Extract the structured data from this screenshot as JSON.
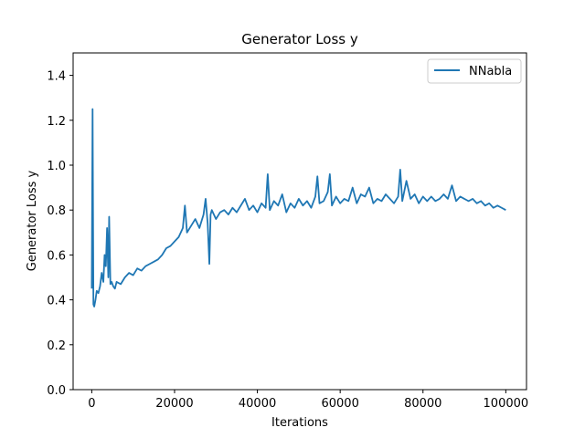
{
  "chart_data": {
    "type": "line",
    "title": "Generator Loss y",
    "xlabel": "Iterations",
    "ylabel": "Generator Loss y",
    "xlim": [
      -4500,
      105000
    ],
    "ylim": [
      0.0,
      1.5
    ],
    "xticks": [
      0,
      20000,
      40000,
      60000,
      80000,
      100000
    ],
    "yticks": [
      0.0,
      0.2,
      0.4,
      0.6,
      0.8,
      1.0,
      1.2,
      1.4
    ],
    "xtick_labels": [
      "0",
      "20000",
      "40000",
      "60000",
      "80000",
      "100000"
    ],
    "ytick_labels": [
      "0.0",
      "0.2",
      "0.4",
      "0.6",
      "0.8",
      "1.0",
      "1.2",
      "1.4"
    ],
    "grid": false,
    "legend": {
      "placement": "top-right",
      "entries": [
        "NNabla"
      ]
    },
    "series": [
      {
        "name": "NNabla",
        "color": "#1f77b4",
        "x": [
          0,
          200,
          400,
          600,
          900,
          1200,
          1600,
          2000,
          2400,
          2800,
          3100,
          3400,
          3700,
          4000,
          4200,
          4500,
          4800,
          5200,
          5600,
          6000,
          7000,
          8000,
          9000,
          10000,
          11000,
          12000,
          13000,
          14000,
          15000,
          16000,
          17000,
          18000,
          19000,
          20000,
          21000,
          22000,
          22500,
          23000,
          24000,
          25000,
          26000,
          27000,
          27500,
          28000,
          28400,
          28700,
          29000,
          30000,
          31000,
          32000,
          33000,
          34000,
          35000,
          36000,
          37000,
          38000,
          39000,
          40000,
          41000,
          42000,
          42500,
          43000,
          44000,
          45000,
          46000,
          47000,
          48000,
          49000,
          50000,
          51000,
          52000,
          53000,
          54000,
          54500,
          55000,
          56000,
          57000,
          57500,
          58000,
          59000,
          60000,
          61000,
          62000,
          63000,
          64000,
          65000,
          66000,
          67000,
          68000,
          69000,
          70000,
          71000,
          72000,
          73000,
          74000,
          74500,
          75000,
          76000,
          77000,
          78000,
          79000,
          80000,
          81000,
          82000,
          83000,
          84000,
          85000,
          86000,
          87000,
          88000,
          89000,
          90000,
          91000,
          92000,
          93000,
          94000,
          95000,
          96000,
          97000,
          98000,
          99000,
          100000
        ],
        "y": [
          0.45,
          1.25,
          0.38,
          0.37,
          0.4,
          0.44,
          0.43,
          0.46,
          0.52,
          0.48,
          0.6,
          0.55,
          0.72,
          0.5,
          0.77,
          0.47,
          0.48,
          0.46,
          0.45,
          0.48,
          0.47,
          0.5,
          0.52,
          0.51,
          0.54,
          0.53,
          0.55,
          0.56,
          0.57,
          0.58,
          0.6,
          0.63,
          0.64,
          0.66,
          0.68,
          0.72,
          0.82,
          0.7,
          0.73,
          0.76,
          0.72,
          0.78,
          0.85,
          0.74,
          0.56,
          0.78,
          0.8,
          0.76,
          0.79,
          0.8,
          0.78,
          0.81,
          0.79,
          0.82,
          0.85,
          0.8,
          0.82,
          0.79,
          0.83,
          0.81,
          0.96,
          0.8,
          0.84,
          0.82,
          0.87,
          0.79,
          0.83,
          0.81,
          0.85,
          0.82,
          0.84,
          0.81,
          0.86,
          0.95,
          0.83,
          0.84,
          0.88,
          0.96,
          0.82,
          0.86,
          0.83,
          0.85,
          0.84,
          0.9,
          0.83,
          0.87,
          0.86,
          0.9,
          0.83,
          0.85,
          0.84,
          0.87,
          0.85,
          0.83,
          0.86,
          0.98,
          0.84,
          0.93,
          0.85,
          0.87,
          0.83,
          0.86,
          0.84,
          0.86,
          0.84,
          0.85,
          0.87,
          0.85,
          0.91,
          0.84,
          0.86,
          0.85,
          0.84,
          0.85,
          0.83,
          0.84,
          0.82,
          0.83,
          0.81,
          0.82,
          0.81,
          0.8
        ]
      }
    ]
  }
}
